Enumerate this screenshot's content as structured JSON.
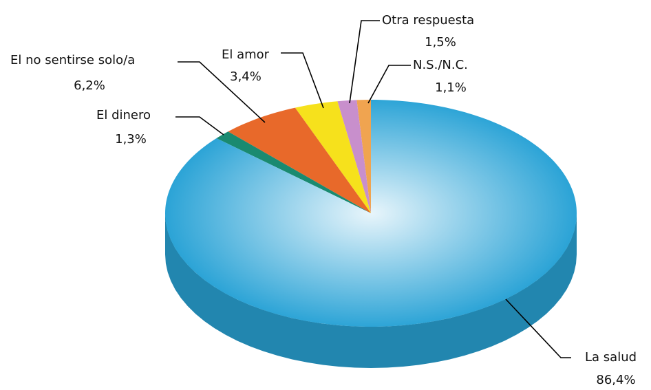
{
  "chart_data": {
    "type": "pie",
    "categories": [
      "N.S./N.C.",
      "Otra respuesta",
      "El amor",
      "El no sentirse solo/a",
      "El dinero",
      "La salud"
    ],
    "values": [
      1.1,
      1.5,
      3.4,
      6.2,
      1.3,
      86.4
    ],
    "value_labels": [
      "1,1%",
      "1,5%",
      "3,4%",
      "6,2%",
      "1,3%",
      "86,4%"
    ],
    "colors": [
      "#f0a450",
      "#c88fcc",
      "#f6e11c",
      "#e8692a",
      "#1a8a70",
      "#2aa3d6"
    ]
  }
}
